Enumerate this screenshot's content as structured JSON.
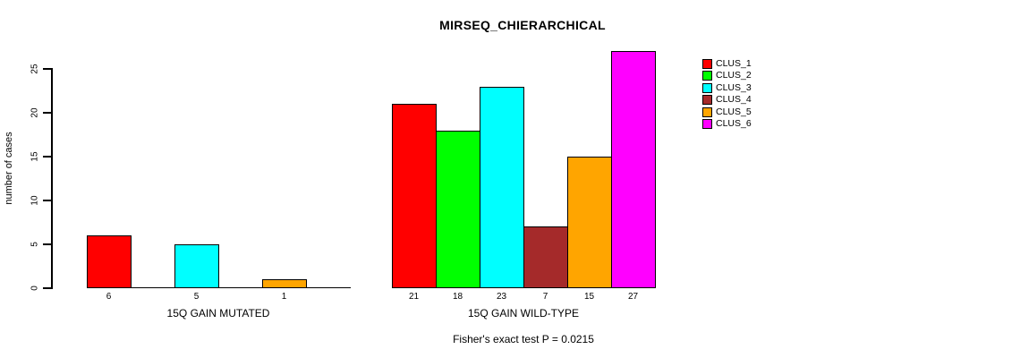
{
  "chart_data": {
    "type": "bar",
    "layout": "grouped",
    "title": "MIRSEQ_CHIERARCHICAL",
    "ylabel": "number of cases",
    "xlabel": "",
    "ylim": [
      0,
      27
    ],
    "yticks": [
      0,
      5,
      10,
      15,
      20,
      25
    ],
    "grid": false,
    "legend_position": "right",
    "series": [
      {
        "name": "CLUS_1",
        "color": "#FF0000"
      },
      {
        "name": "CLUS_2",
        "color": "#00FF00"
      },
      {
        "name": "CLUS_3",
        "color": "#00FFFF"
      },
      {
        "name": "CLUS_4",
        "color": "#A52A2A"
      },
      {
        "name": "CLUS_5",
        "color": "#FFA500"
      },
      {
        "name": "CLUS_6",
        "color": "#FF00FF"
      }
    ],
    "groups": [
      {
        "label": "15Q GAIN MUTATED",
        "values": [
          6,
          0,
          5,
          0,
          1,
          0
        ],
        "value_labels": [
          "6",
          "",
          "5",
          "",
          "1",
          ""
        ]
      },
      {
        "label": "15Q GAIN WILD-TYPE",
        "values": [
          21,
          18,
          23,
          7,
          15,
          27
        ],
        "value_labels": [
          "21",
          "18",
          "23",
          "7",
          "15",
          "27"
        ]
      }
    ],
    "footnote": "Fisher's exact test P = 0.0215",
    "axis_color": "#000000",
    "text_color": "#000000",
    "background": "#FFFFFF"
  }
}
